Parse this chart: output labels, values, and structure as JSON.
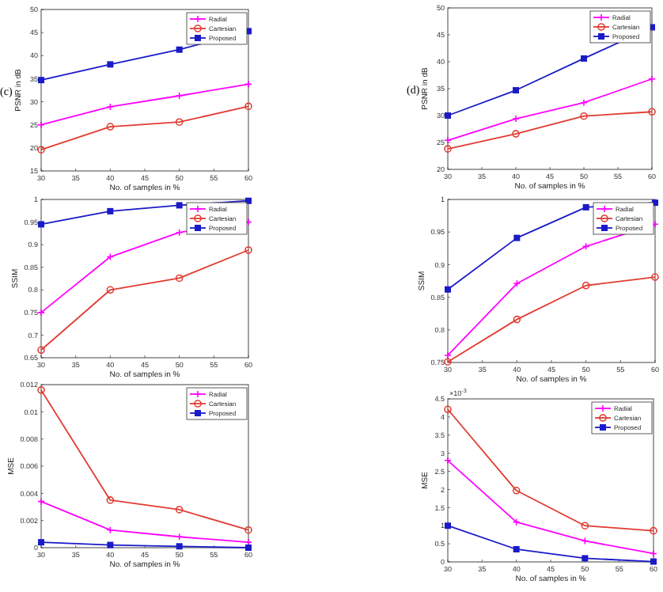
{
  "chart_data": [
    {
      "type": "line",
      "ylabel": "PSNR in dB",
      "xlabel": "No. of samples in %",
      "annotations": [
        "(c)"
      ],
      "x": [
        30,
        40,
        50,
        60
      ],
      "xlim": [
        30,
        60
      ],
      "xticks": [
        30,
        35,
        40,
        45,
        50,
        55,
        60
      ],
      "ylim": [
        15,
        50
      ],
      "yticks": [
        15,
        20,
        25,
        30,
        35,
        40,
        45,
        50
      ],
      "legend": "top right",
      "grid": false,
      "series": [
        {
          "name": "Radial",
          "color": "#ff00ff",
          "marker": "cross",
          "values": [
            25.0,
            28.9,
            31.3,
            33.8
          ]
        },
        {
          "name": "Cartesian",
          "color": "#e03c32",
          "marker": "circle",
          "values": [
            19.6,
            24.6,
            25.6,
            29.0
          ]
        },
        {
          "name": "Proposed",
          "color": "#1a1ac8",
          "marker": "square",
          "values": [
            34.7,
            38.1,
            41.3,
            45.3
          ]
        }
      ]
    },
    {
      "type": "line",
      "ylabel": "PSNR in dB",
      "xlabel": "No. of samples in %",
      "annotations": [
        "(d)"
      ],
      "x": [
        30,
        40,
        50,
        60
      ],
      "xlim": [
        30,
        60
      ],
      "xticks": [
        30,
        35,
        40,
        45,
        50,
        55,
        60
      ],
      "ylim": [
        20,
        50
      ],
      "yticks": [
        20,
        25,
        30,
        35,
        40,
        45,
        50
      ],
      "legend": "top right",
      "grid": false,
      "series": [
        {
          "name": "Radial",
          "color": "#ff00ff",
          "marker": "cross",
          "values": [
            25.4,
            29.4,
            32.4,
            36.8
          ]
        },
        {
          "name": "Cartesian",
          "color": "#e03c32",
          "marker": "circle",
          "values": [
            23.8,
            26.6,
            29.9,
            30.7
          ]
        },
        {
          "name": "Proposed",
          "color": "#1a1ac8",
          "marker": "square",
          "values": [
            30.0,
            34.7,
            40.6,
            46.4
          ]
        }
      ]
    },
    {
      "type": "line",
      "ylabel": "SSIM",
      "xlabel": "No. of samples in %",
      "x": [
        30,
        40,
        50,
        60
      ],
      "xlim": [
        30,
        60
      ],
      "xticks": [
        30,
        35,
        40,
        45,
        50,
        55,
        60
      ],
      "ylim": [
        0.65,
        1
      ],
      "yticks": [
        0.65,
        0.7,
        0.75,
        0.8,
        0.85,
        0.9,
        0.95,
        1
      ],
      "legend": "top right",
      "grid": false,
      "series": [
        {
          "name": "Radial",
          "color": "#ff00ff",
          "marker": "cross",
          "values": [
            0.75,
            0.873,
            0.927,
            0.95
          ]
        },
        {
          "name": "Cartesian",
          "color": "#e03c32",
          "marker": "circle",
          "values": [
            0.667,
            0.8,
            0.826,
            0.888
          ]
        },
        {
          "name": "Proposed",
          "color": "#1a1ac8",
          "marker": "square",
          "values": [
            0.945,
            0.974,
            0.987,
            0.997
          ]
        }
      ]
    },
    {
      "type": "line",
      "ylabel": "SSIM",
      "xlabel": "No. of samples in %",
      "x": [
        30,
        40,
        50,
        60
      ],
      "xlim": [
        30,
        60
      ],
      "xticks": [
        30,
        35,
        40,
        45,
        50,
        55,
        60
      ],
      "ylim": [
        0.75,
        1
      ],
      "yticks": [
        0.75,
        0.8,
        0.85,
        0.9,
        0.95,
        1
      ],
      "legend": "top right",
      "grid": false,
      "series": [
        {
          "name": "Radial",
          "color": "#ff00ff",
          "marker": "cross",
          "values": [
            0.761,
            0.871,
            0.928,
            0.962
          ]
        },
        {
          "name": "Cartesian",
          "color": "#e03c32",
          "marker": "circle",
          "values": [
            0.751,
            0.816,
            0.868,
            0.881
          ]
        },
        {
          "name": "Proposed",
          "color": "#1a1ac8",
          "marker": "square",
          "values": [
            0.862,
            0.941,
            0.988,
            0.995
          ]
        }
      ]
    },
    {
      "type": "line",
      "ylabel": "MSE",
      "xlabel": "No. of samples in %",
      "x": [
        30,
        40,
        50,
        60
      ],
      "xlim": [
        30,
        60
      ],
      "xticks": [
        30,
        35,
        40,
        45,
        50,
        55,
        60
      ],
      "ylim": [
        0,
        0.012
      ],
      "yticks": [
        0,
        0.002,
        0.004,
        0.006,
        0.008,
        0.01,
        0.012
      ],
      "legend": "top right",
      "grid": false,
      "series": [
        {
          "name": "Radial",
          "color": "#ff00ff",
          "marker": "cross",
          "values": [
            0.0034,
            0.0013,
            0.0008,
            0.0004
          ]
        },
        {
          "name": "Cartesian",
          "color": "#e03c32",
          "marker": "circle",
          "values": [
            0.0116,
            0.0035,
            0.0028,
            0.0013
          ]
        },
        {
          "name": "Proposed",
          "color": "#1a1ac8",
          "marker": "square",
          "values": [
            0.0004,
            0.0002,
            0.0001,
            0.0
          ]
        }
      ]
    },
    {
      "type": "line",
      "ylabel": "MSE",
      "xlabel": "No. of samples in %",
      "annotations": [
        "×10$^{-3}$"
      ],
      "x": [
        30,
        40,
        50,
        60
      ],
      "xlim": [
        30,
        60
      ],
      "xticks": [
        30,
        35,
        40,
        45,
        50,
        55,
        60
      ],
      "ylim": [
        0,
        4.5
      ],
      "yticks": [
        0,
        0.5,
        1,
        1.5,
        2,
        2.5,
        3,
        3.5,
        4,
        4.5
      ],
      "legend": "top right",
      "grid": false,
      "series": [
        {
          "name": "Radial",
          "color": "#ff00ff",
          "marker": "cross",
          "values": [
            2.8,
            1.1,
            0.58,
            0.23
          ]
        },
        {
          "name": "Cartesian",
          "color": "#e03c32",
          "marker": "circle",
          "values": [
            4.21,
            1.97,
            1.0,
            0.86
          ]
        },
        {
          "name": "Proposed",
          "color": "#1a1ac8",
          "marker": "square",
          "values": [
            1.0,
            0.35,
            0.1,
            0.01
          ]
        }
      ]
    }
  ]
}
